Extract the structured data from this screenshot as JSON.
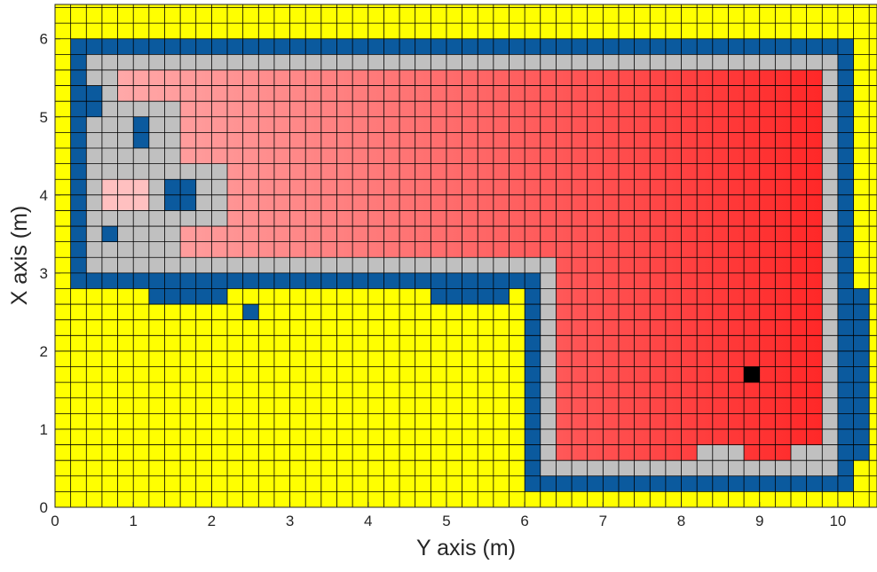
{
  "chart_data": {
    "type": "grid_map",
    "xlabel": "Y axis (m)",
    "ylabel": "X axis (m)",
    "xlim": [
      0,
      10.5
    ],
    "ylim": [
      0,
      6.44
    ],
    "xticks": [
      0,
      1,
      2,
      3,
      4,
      5,
      6,
      7,
      8,
      9,
      10
    ],
    "yticks": [
      0,
      1,
      2,
      3,
      4,
      5,
      6
    ],
    "cell_size": 0.2,
    "background": "#ffff00",
    "gradient": {
      "from": "#ffb4b4",
      "to": "#ff1e1e"
    },
    "regions": [
      {
        "x": [
          0.2,
          10.2
        ],
        "y": [
          2.8,
          6.0
        ],
        "color": "#0b5a9e"
      },
      {
        "x": [
          6.0,
          10.2
        ],
        "y": [
          0.2,
          6.0
        ],
        "color": "#0b5a9e"
      },
      {
        "x": [
          10.2,
          10.4
        ],
        "y": [
          0.6,
          2.8
        ],
        "color": "#0b5a9e"
      },
      {
        "x": [
          0.4,
          10.0
        ],
        "y": [
          3.0,
          5.8
        ],
        "color": "#c0c0c0"
      },
      {
        "x": [
          6.2,
          10.0
        ],
        "y": [
          0.4,
          5.8
        ],
        "color": "#c0c0c0"
      },
      {
        "x": [
          0.8,
          9.8
        ],
        "y": [
          3.2,
          5.6
        ],
        "color": "gradient"
      },
      {
        "x": [
          6.4,
          9.8
        ],
        "y": [
          0.6,
          5.6
        ],
        "color": "gradient"
      },
      {
        "x": [
          0.4,
          1.6
        ],
        "y": [
          3.2,
          5.2
        ],
        "color": "#c0c0c0"
      },
      {
        "x": [
          1.6,
          2.2
        ],
        "y": [
          3.6,
          4.4
        ],
        "color": "#c0c0c0"
      },
      {
        "x": [
          0.6,
          1.2
        ],
        "y": [
          3.8,
          4.2
        ],
        "color": "#ffc0c0"
      },
      {
        "x": [
          0.4,
          0.6
        ],
        "y": [
          5.0,
          5.4
        ],
        "color": "#0b5a9e"
      },
      {
        "x": [
          1.0,
          1.2
        ],
        "y": [
          4.6,
          5.0
        ],
        "color": "#0b5a9e"
      },
      {
        "x": [
          1.4,
          1.8
        ],
        "y": [
          3.8,
          4.2
        ],
        "color": "#0b5a9e"
      },
      {
        "x": [
          0.6,
          0.8
        ],
        "y": [
          3.4,
          3.6
        ],
        "color": "#0b5a9e"
      },
      {
        "x": [
          1.2,
          2.2
        ],
        "y": [
          2.6,
          2.8
        ],
        "color": "#0b5a9e"
      },
      {
        "x": [
          4.8,
          5.8
        ],
        "y": [
          2.6,
          2.8
        ],
        "color": "#0b5a9e"
      },
      {
        "x": [
          2.4,
          2.6
        ],
        "y": [
          2.4,
          2.6
        ],
        "color": "#0b5a9e"
      },
      {
        "x": [
          8.2,
          8.8
        ],
        "y": [
          0.4,
          0.8
        ],
        "color": "#c0c0c0"
      },
      {
        "x": [
          9.4,
          9.8
        ],
        "y": [
          0.4,
          0.8
        ],
        "color": "#c0c0c0"
      },
      {
        "x": [
          8.8,
          9.0
        ],
        "y": [
          1.6,
          1.8
        ],
        "color": "#000000"
      }
    ]
  }
}
